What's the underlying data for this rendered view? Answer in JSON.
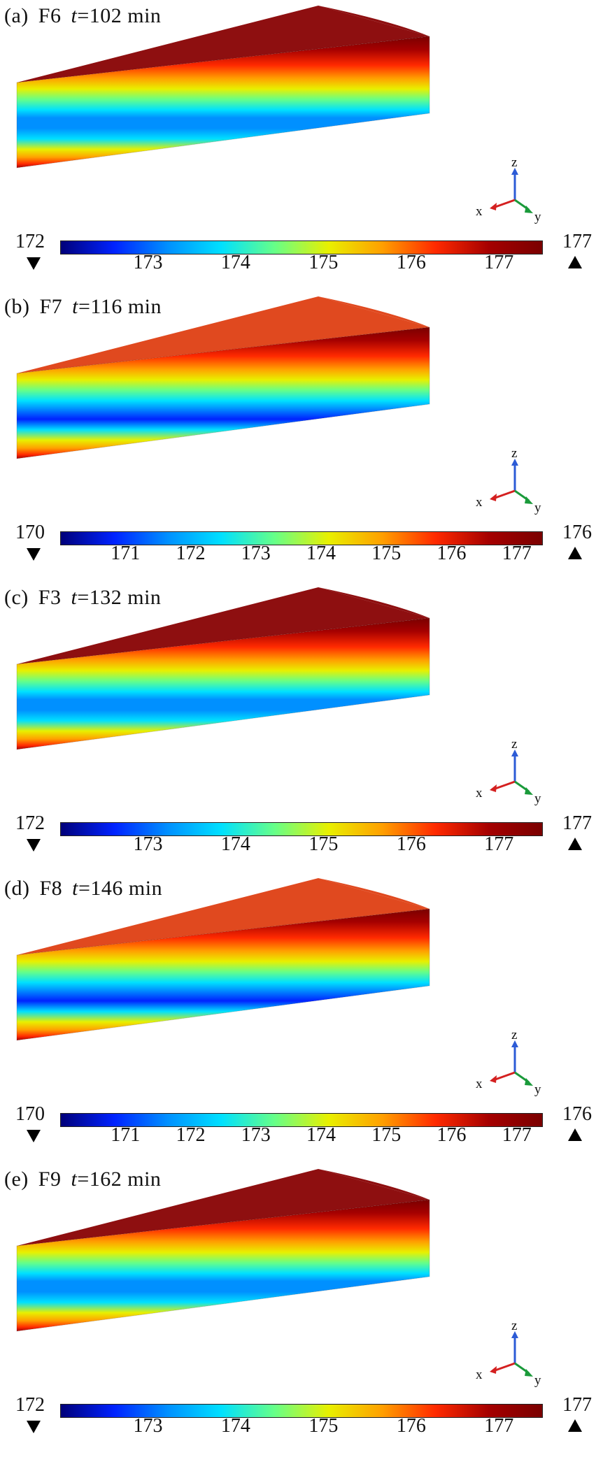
{
  "colormap": [
    "#00007a",
    "#0022ff",
    "#0090ff",
    "#00e0ff",
    "#66ff88",
    "#e8f000",
    "#ffa000",
    "#ff2a00",
    "#a50000",
    "#7a0000"
  ],
  "panels": [
    {
      "label": "(a)",
      "case": "F6",
      "time_var": "t",
      "time_val": "=102 min",
      "min_value": "172",
      "max_value": "177",
      "ticks": [
        "173",
        "174",
        "175",
        "176",
        "177"
      ],
      "tick_values": [
        173,
        174,
        175,
        176,
        177
      ],
      "range": [
        172,
        177.5
      ],
      "top_color": "#8e0f10",
      "cool_level": 0.8,
      "axes": {
        "z": "z",
        "x": "x",
        "y": "y"
      }
    },
    {
      "label": "(b)",
      "case": "F7",
      "time_var": "t",
      "time_val": "=116 min",
      "min_value": "170",
      "max_value": "176",
      "ticks": [
        "171",
        "172",
        "173",
        "174",
        "175",
        "176",
        "177"
      ],
      "tick_values": [
        171,
        172,
        173,
        174,
        175,
        176,
        177
      ],
      "range": [
        170,
        177.4
      ],
      "top_color": "#e0491f",
      "cool_level": 0.95,
      "axes": {
        "z": "z",
        "x": "x",
        "y": "y"
      }
    },
    {
      "label": "(c)",
      "case": "F3",
      "time_var": "t",
      "time_val": "=132 min",
      "min_value": "172",
      "max_value": "177",
      "ticks": [
        "173",
        "174",
        "175",
        "176",
        "177"
      ],
      "tick_values": [
        173,
        174,
        175,
        176,
        177
      ],
      "range": [
        172,
        177.5
      ],
      "top_color": "#8e0f10",
      "cool_level": 0.8,
      "axes": {
        "z": "z",
        "x": "x",
        "y": "y"
      }
    },
    {
      "label": "(d)",
      "case": "F8",
      "time_var": "t",
      "time_val": "=146 min",
      "min_value": "170",
      "max_value": "176",
      "ticks": [
        "171",
        "172",
        "173",
        "174",
        "175",
        "176",
        "177"
      ],
      "tick_values": [
        171,
        172,
        173,
        174,
        175,
        176,
        177
      ],
      "range": [
        170,
        177.4
      ],
      "top_color": "#e0491f",
      "cool_level": 0.95,
      "axes": {
        "z": "z",
        "x": "x",
        "y": "y"
      }
    },
    {
      "label": "(e)",
      "case": "F9",
      "time_var": "t",
      "time_val": "=162 min",
      "min_value": "172",
      "max_value": "177",
      "ticks": [
        "173",
        "174",
        "175",
        "176",
        "177"
      ],
      "tick_values": [
        173,
        174,
        175,
        176,
        177
      ],
      "range": [
        172,
        177.5
      ],
      "top_color": "#8e0f10",
      "cool_level": 0.8,
      "axes": {
        "z": "z",
        "x": "x",
        "y": "y"
      }
    }
  ]
}
